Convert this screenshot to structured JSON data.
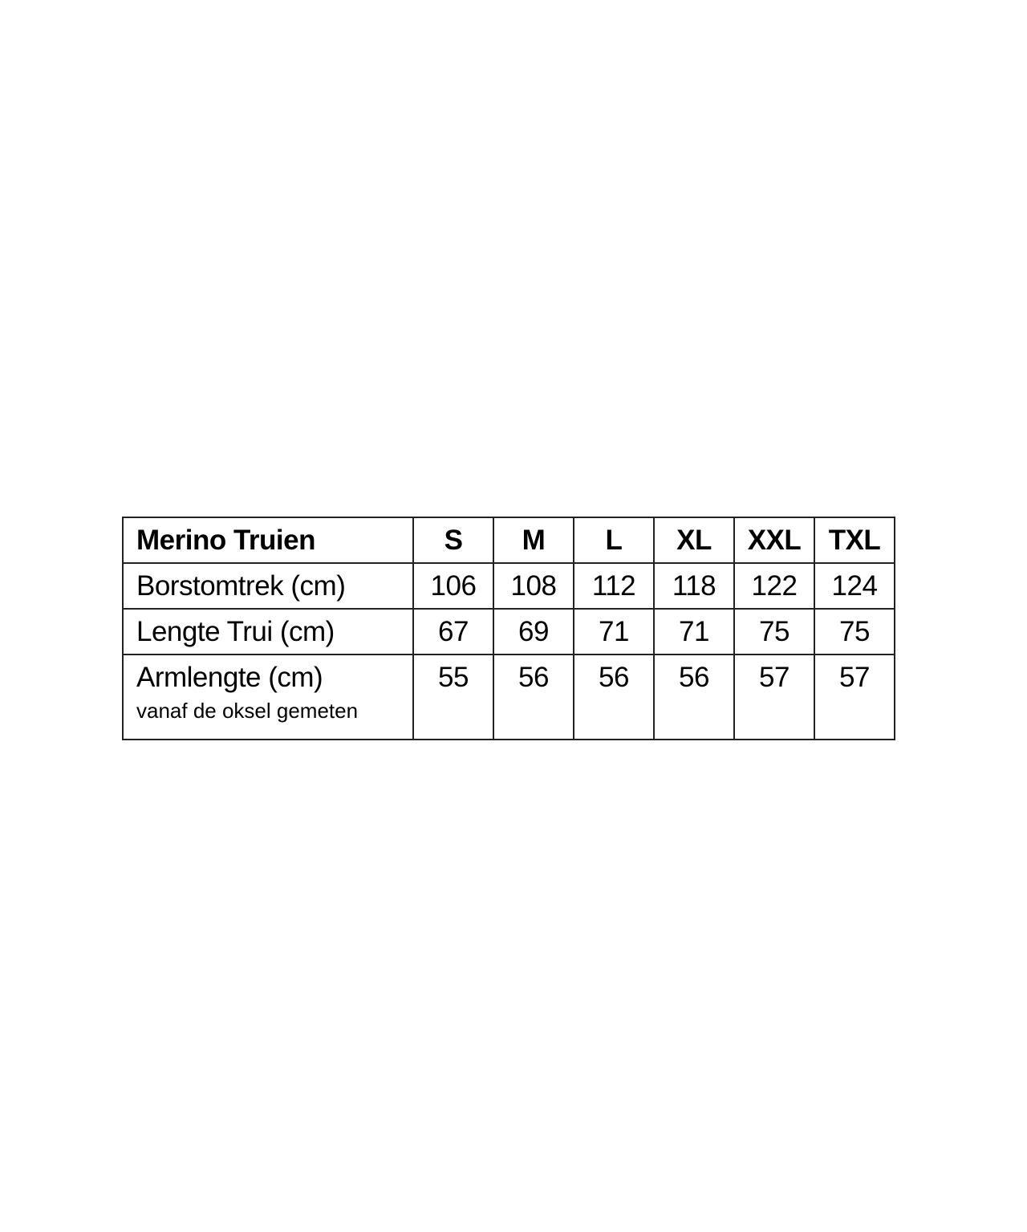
{
  "table": {
    "header": {
      "label": "Merino Truien",
      "sizes": [
        "S",
        "M",
        "L",
        "XL",
        "XXL",
        "TXL"
      ]
    },
    "rows": [
      {
        "label": "Borstomtrek (cm)",
        "values": [
          "106",
          "108",
          "112",
          "118",
          "122",
          "124"
        ]
      },
      {
        "label": "Lengte Trui (cm)",
        "values": [
          "67",
          "69",
          "71",
          "71",
          "75",
          "75"
        ]
      },
      {
        "label": "Armlengte (cm)",
        "note": "vanaf de oksel gemeten",
        "values": [
          "55",
          "56",
          "56",
          "56",
          "57",
          "57"
        ]
      }
    ]
  }
}
